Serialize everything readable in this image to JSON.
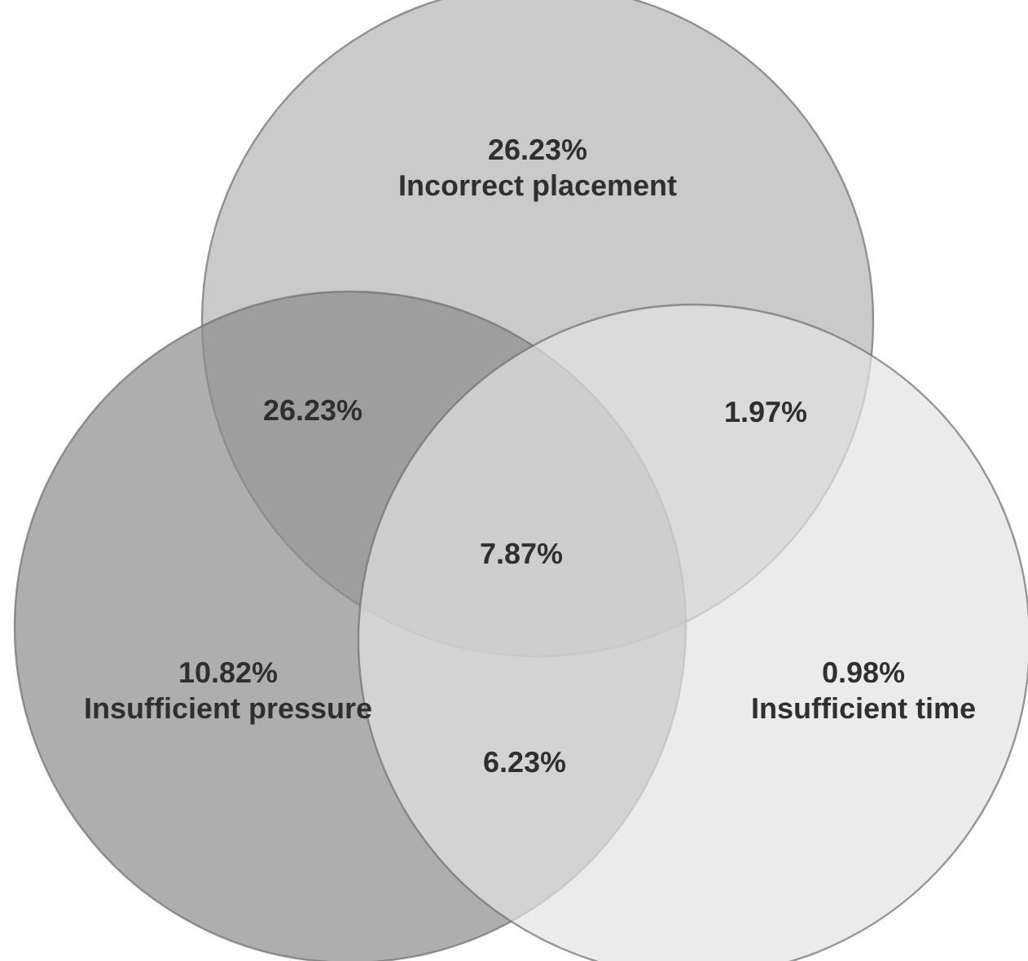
{
  "chart_data": {
    "type": "other",
    "categories": [
      "Incorrect placement",
      "Insufficient pressure",
      "Insufficient time"
    ],
    "values": [
      26.23,
      10.82,
      0.98
    ],
    "value_labels": [
      "26.23%",
      "10.82%",
      "0.98%"
    ],
    "colors": [
      "#b4b4b4",
      "#8c8c8c",
      "#e2e2e2"
    ],
    "annotations": [
      "26.23%",
      "1.97%",
      "6.23%",
      "7.87%"
    ]
  }
}
